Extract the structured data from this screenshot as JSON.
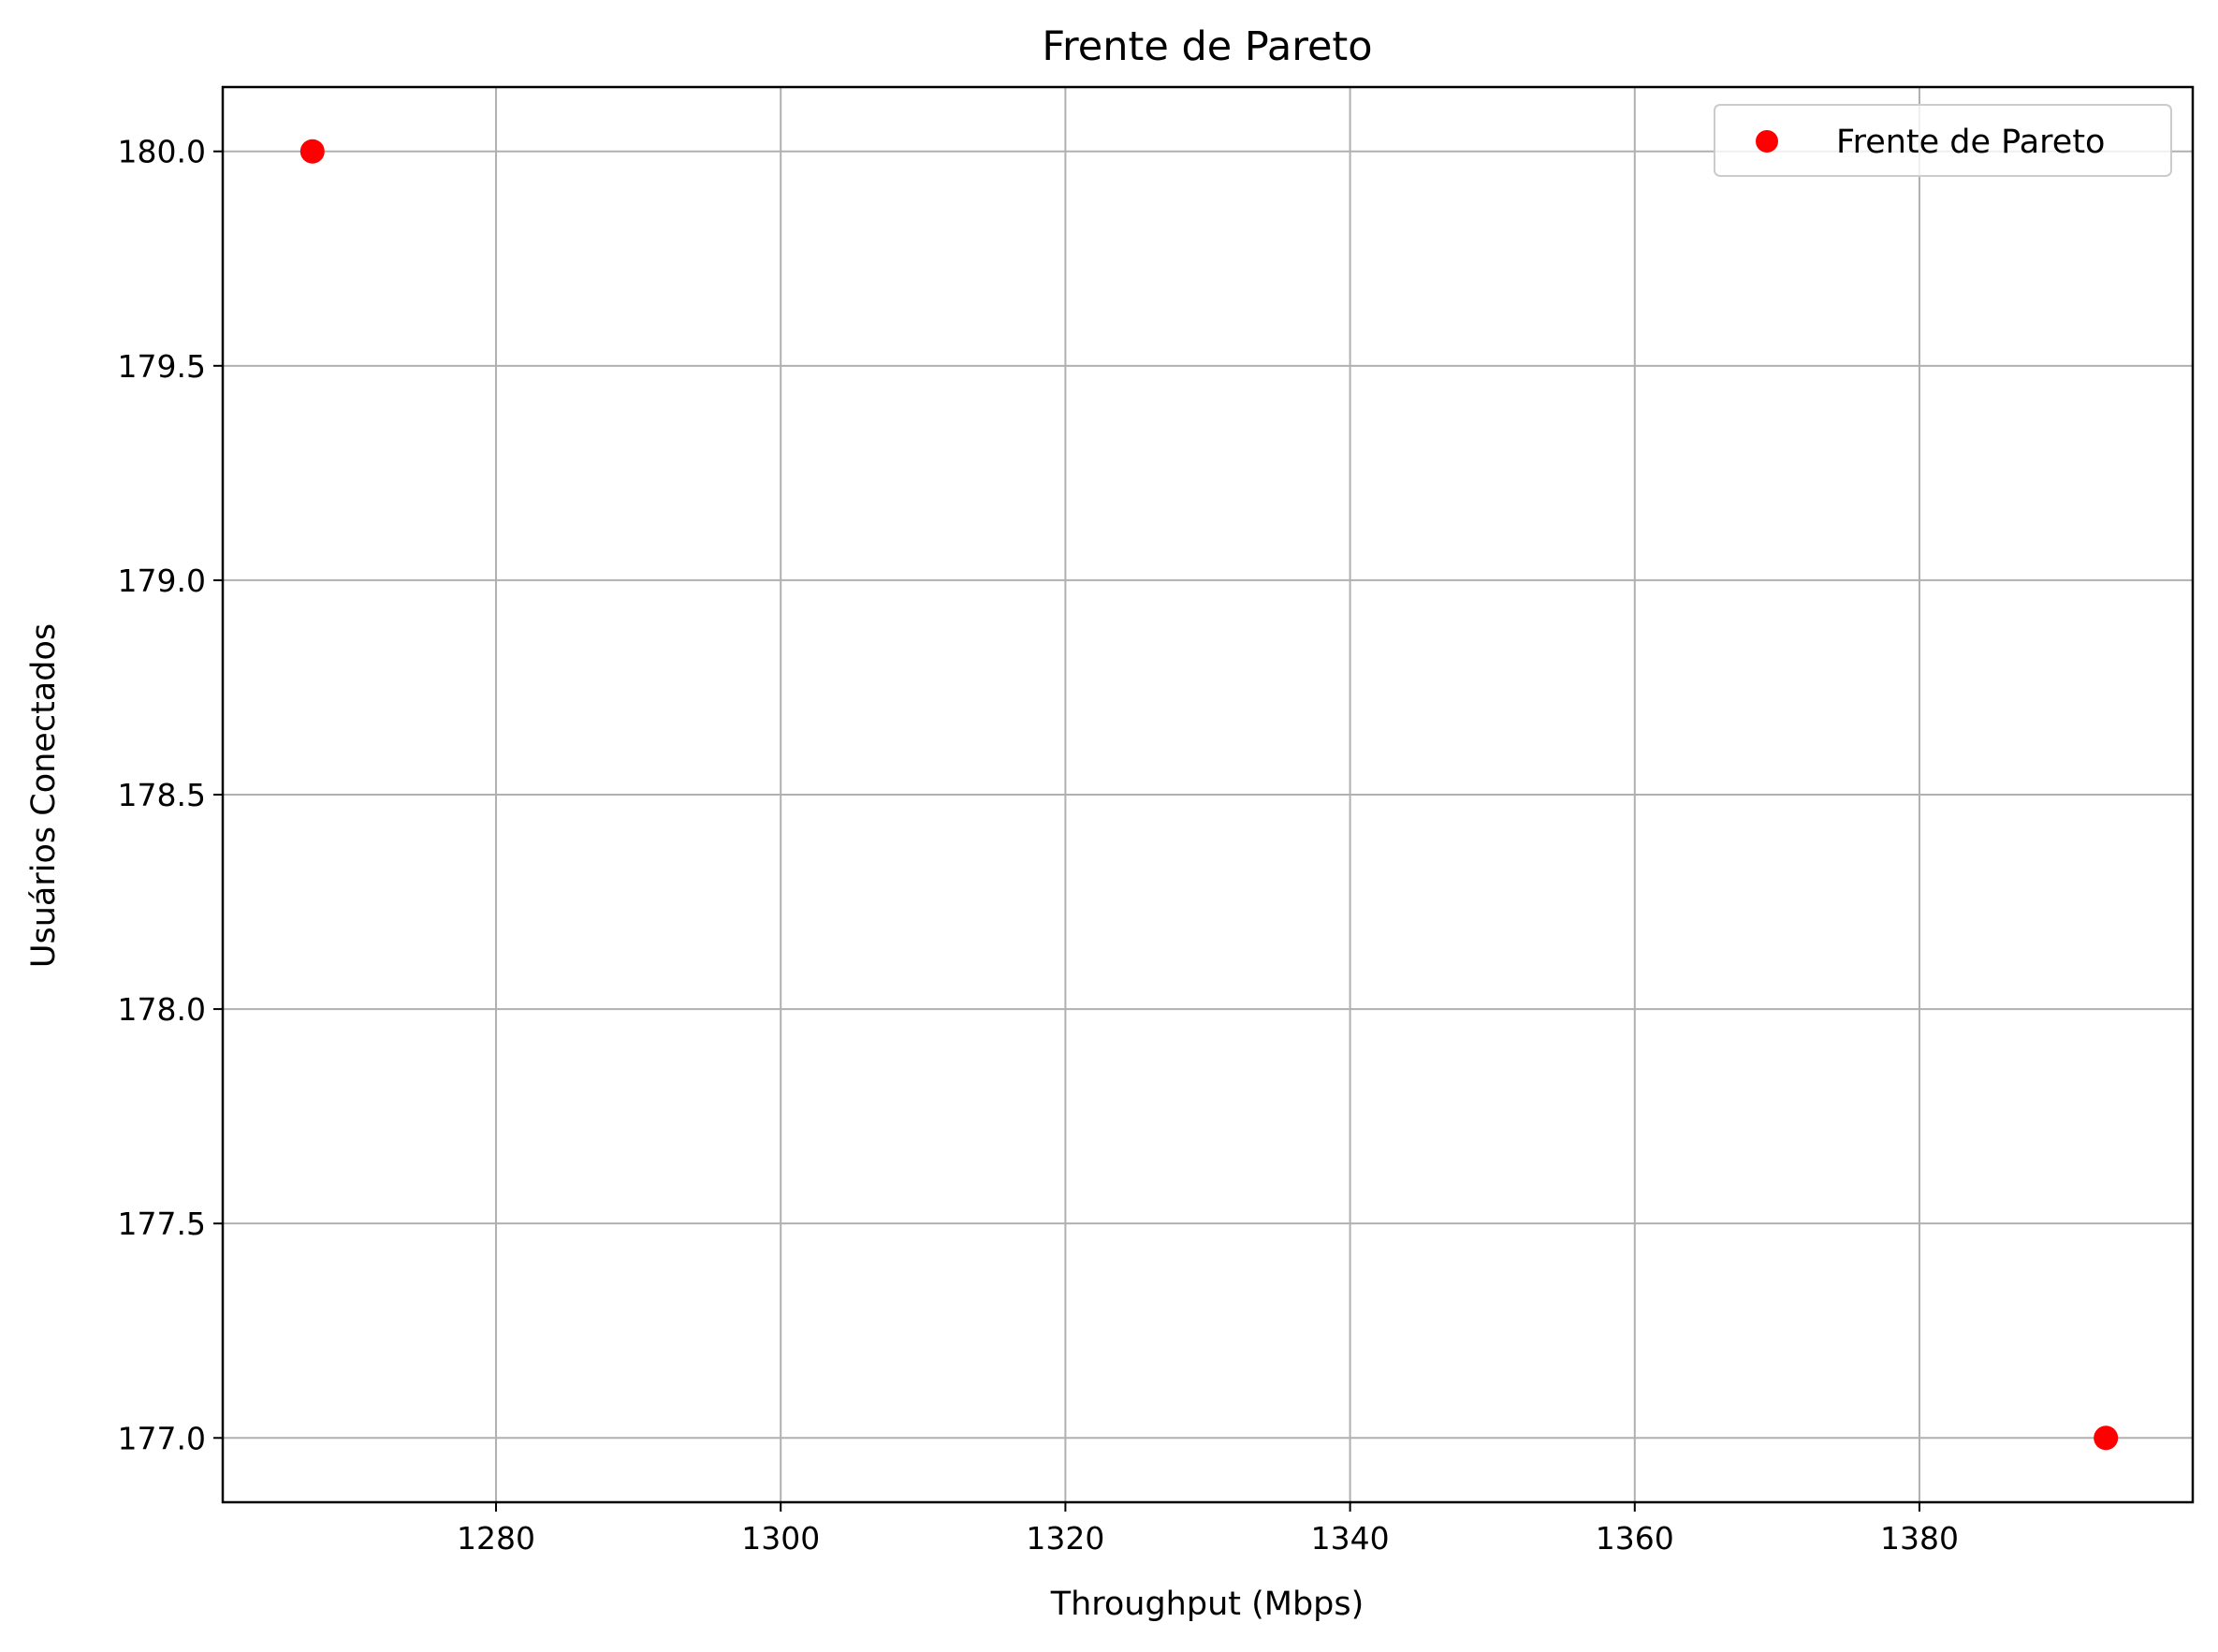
{
  "chart_data": {
    "type": "scatter",
    "title": "Frente de Pareto",
    "xlabel": "Throughput (Mbps)",
    "ylabel": "Usuários Conectados",
    "xlim": [
      1260.8,
      1399.2
    ],
    "ylim": [
      176.85,
      180.15
    ],
    "xticks": [
      1280,
      1300,
      1320,
      1340,
      1360,
      1380
    ],
    "yticks": [
      177.0,
      177.5,
      178.0,
      178.5,
      179.0,
      179.5,
      180.0
    ],
    "xtick_labels": [
      "1280",
      "1300",
      "1320",
      "1340",
      "1360",
      "1380"
    ],
    "ytick_labels": [
      "177.0",
      "177.5",
      "178.0",
      "178.5",
      "179.0",
      "179.5",
      "180.0"
    ],
    "grid": true,
    "legend_position": "top-right",
    "series": [
      {
        "name": "Frente de Pareto",
        "color": "#ff0000",
        "points": [
          {
            "x": 1267.1,
            "y": 180.0
          },
          {
            "x": 1393.1,
            "y": 177.0
          }
        ]
      }
    ]
  }
}
